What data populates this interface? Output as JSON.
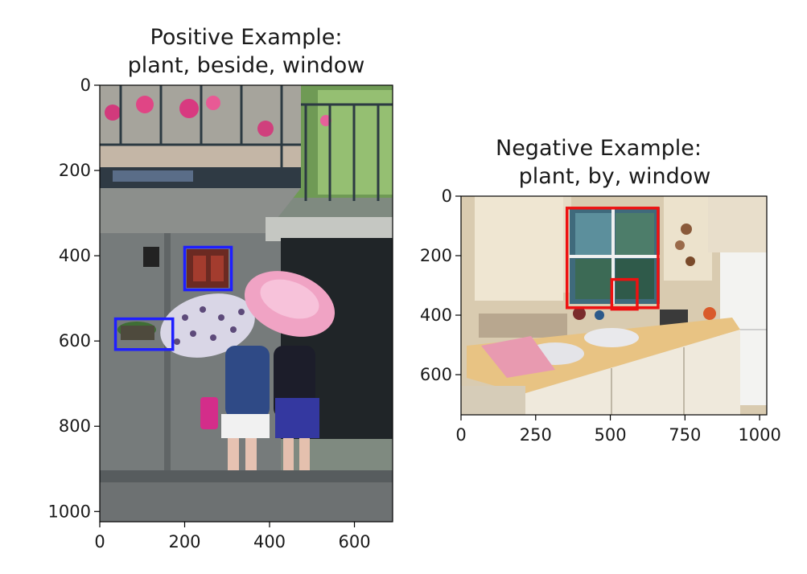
{
  "chart_data": [
    {
      "type": "image",
      "title_line1": "Positive Example:",
      "title_line2": "plant, beside, window",
      "xlim": [
        0,
        690
      ],
      "ylim": [
        1024,
        0
      ],
      "xticks": [
        0,
        200,
        400,
        600
      ],
      "yticks": [
        0,
        200,
        400,
        600,
        800,
        1000
      ],
      "box_color": "#1f1fff",
      "boxes": [
        {
          "label": "window",
          "x0": 200,
          "y0": 380,
          "x1": 310,
          "y1": 480
        },
        {
          "label": "plant",
          "x0": 37,
          "y0": 548,
          "x1": 172,
          "y1": 620
        }
      ]
    },
    {
      "type": "image",
      "title_line1": "Negative Example:",
      "title_line2": "plant, by, window",
      "xlim": [
        0,
        1024
      ],
      "ylim": [
        735,
        0
      ],
      "xticks": [
        0,
        250,
        500,
        750,
        1000
      ],
      "yticks": [
        0,
        200,
        400,
        600
      ],
      "box_color": "#ee1111",
      "boxes": [
        {
          "label": "window",
          "x0": 355,
          "y0": 40,
          "x1": 660,
          "y1": 375
        },
        {
          "label": "plant",
          "x0": 505,
          "y0": 280,
          "x1": 590,
          "y1": 380
        }
      ]
    }
  ]
}
